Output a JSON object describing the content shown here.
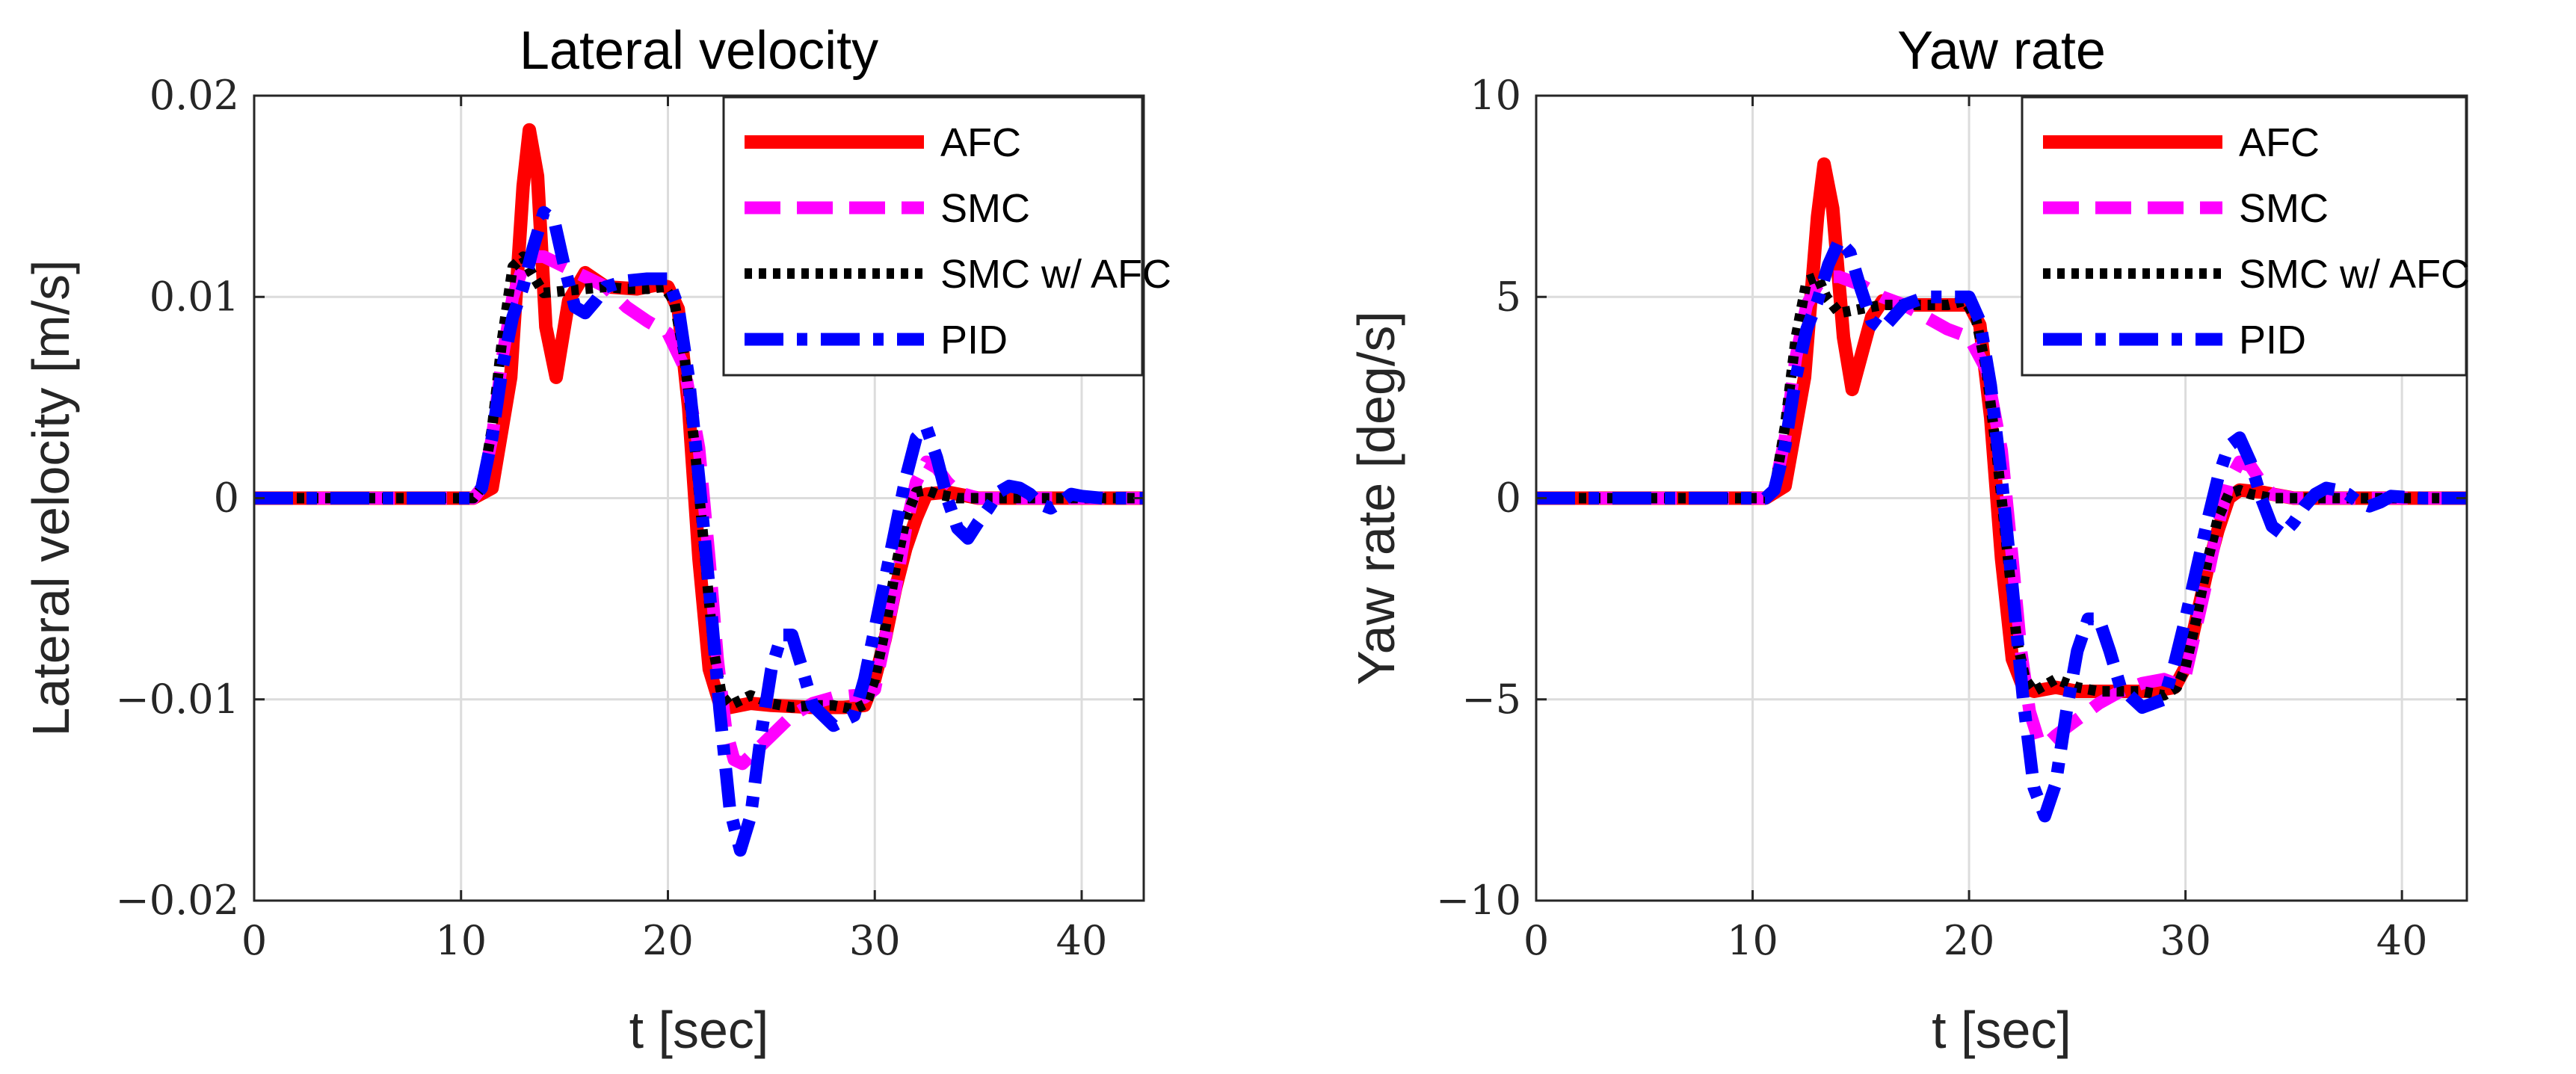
{
  "chart_data": [
    {
      "type": "line",
      "title": "Lateral velocity",
      "xlabel": "t [sec]",
      "ylabel": "Lateral velocity [m/s]",
      "xlim": [
        0,
        43
      ],
      "ylim": [
        -0.02,
        0.02
      ],
      "xticks": [
        0,
        10,
        20,
        30,
        40
      ],
      "xtick_labels": [
        "0",
        "10",
        "20",
        "30",
        "40"
      ],
      "yticks": [
        -0.02,
        -0.01,
        0,
        0.01,
        0.02
      ],
      "ytick_labels": [
        "−0.02",
        "−0.01",
        "0",
        "0.01",
        "0.02"
      ],
      "grid": true,
      "legend": "top-right",
      "series": [
        {
          "name": "AFC",
          "color": "#ff0000",
          "style": "solid",
          "x": [
            0,
            10.6,
            11.5,
            12.4,
            13.0,
            13.3,
            13.7,
            14.1,
            14.6,
            15.2,
            16.0,
            17.0,
            18.5,
            19.5,
            20.0,
            20.5,
            21.0,
            21.5,
            22.0,
            22.5,
            23.0,
            24.0,
            25.0,
            27.0,
            28.5,
            29.5,
            30.0,
            30.5,
            31.0,
            31.5,
            32.0,
            32.5,
            33.5,
            35.0,
            37.0,
            43
          ],
          "y": [
            0,
            0,
            0.0005,
            0.006,
            0.0155,
            0.0183,
            0.016,
            0.0085,
            0.006,
            0.0098,
            0.0112,
            0.0105,
            0.0104,
            0.0106,
            0.0105,
            0.0094,
            0.0045,
            -0.003,
            -0.0085,
            -0.0102,
            -0.0104,
            -0.0102,
            -0.0103,
            -0.0104,
            -0.0104,
            -0.0103,
            -0.009,
            -0.007,
            -0.0045,
            -0.0025,
            -0.001,
            0.0002,
            0.0003,
            0,
            0,
            0
          ]
        },
        {
          "name": "SMC",
          "color": "#ff00ff",
          "style": "dashed",
          "x": [
            0,
            10.6,
            11.0,
            11.5,
            12.0,
            12.5,
            13.0,
            13.5,
            14.0,
            15.0,
            16.0,
            17.0,
            18.0,
            19.0,
            20.0,
            20.8,
            21.5,
            22.0,
            22.4,
            22.8,
            23.2,
            23.6,
            24.0,
            25.0,
            26.0,
            27.0,
            28.0,
            29.0,
            29.5,
            30.0,
            30.5,
            31.0,
            31.5,
            32.0,
            32.5,
            33.0,
            33.5,
            34.0,
            35.0,
            43
          ],
          "y": [
            0,
            0,
            0.0005,
            0.003,
            0.007,
            0.01,
            0.0115,
            0.012,
            0.012,
            0.0115,
            0.011,
            0.0105,
            0.0095,
            0.0088,
            0.0082,
            0.0065,
            0.0025,
            -0.003,
            -0.008,
            -0.0115,
            -0.013,
            -0.0132,
            -0.0128,
            -0.0118,
            -0.0108,
            -0.0102,
            -0.0099,
            -0.0098,
            -0.0099,
            -0.0095,
            -0.007,
            -0.0045,
            -0.0015,
            0.0008,
            0.0018,
            0.0015,
            0.0008,
            0.0003,
            0,
            0
          ]
        },
        {
          "name": "SMC w/ AFC",
          "color": "#000000",
          "style": "dotted",
          "x": [
            0,
            10.6,
            11.0,
            11.5,
            12.0,
            12.5,
            13.0,
            13.4,
            14.0,
            15.0,
            16.0,
            17.0,
            18.0,
            19.0,
            19.8,
            20.3,
            20.8,
            21.3,
            21.8,
            22.2,
            22.6,
            23.0,
            24.0,
            25.0,
            26.0,
            27.0,
            28.0,
            29.0,
            29.6,
            30.0,
            30.5,
            31.0,
            31.5,
            32.0,
            32.5,
            33.0,
            34.0,
            43
          ],
          "y": [
            0,
            0,
            0.0005,
            0.0035,
            0.008,
            0.0115,
            0.012,
            0.0112,
            0.0102,
            0.0103,
            0.0104,
            0.0105,
            0.0104,
            0.0104,
            0.0105,
            0.0098,
            0.007,
            0.0025,
            -0.003,
            -0.0075,
            -0.0098,
            -0.0103,
            -0.0098,
            -0.0102,
            -0.0104,
            -0.0103,
            -0.0103,
            -0.0105,
            -0.0102,
            -0.009,
            -0.0065,
            -0.0035,
            -0.001,
            0.0003,
            0.0004,
            0.0002,
            0,
            0
          ]
        },
        {
          "name": "PID",
          "color": "#0000ff",
          "style": "dashdot",
          "x": [
            0,
            10.6,
            11.0,
            11.5,
            12.0,
            12.5,
            13.0,
            13.5,
            14.0,
            14.5,
            15.0,
            15.5,
            16.0,
            16.5,
            17.0,
            18.0,
            19.0,
            20.0,
            20.5,
            21.0,
            21.5,
            22.0,
            22.5,
            23.0,
            23.5,
            24.0,
            24.5,
            25.0,
            25.5,
            26.0,
            26.5,
            27.0,
            28.0,
            29.0,
            29.5,
            30.0,
            30.5,
            31.0,
            31.5,
            32.0,
            32.5,
            33.0,
            33.5,
            34.0,
            34.5,
            35.0,
            35.5,
            36.0,
            36.5,
            37.0,
            37.5,
            38.0,
            38.5,
            39.0,
            39.5,
            40.0,
            41.0,
            43
          ],
          "y": [
            0,
            0,
            0.0005,
            0.003,
            0.0065,
            0.009,
            0.0105,
            0.0125,
            0.0142,
            0.0138,
            0.0115,
            0.0095,
            0.0092,
            0.0098,
            0.0105,
            0.0108,
            0.0109,
            0.0109,
            0.0095,
            0.006,
            0.001,
            -0.0045,
            -0.0105,
            -0.0155,
            -0.0175,
            -0.0158,
            -0.0118,
            -0.0085,
            -0.0068,
            -0.0068,
            -0.0085,
            -0.0103,
            -0.0113,
            -0.0108,
            -0.009,
            -0.0065,
            -0.004,
            -0.0015,
            0.001,
            0.003,
            0.0035,
            0.002,
            0.0,
            -0.0015,
            -0.002,
            -0.0012,
            -0.0005,
            0.0003,
            0.0006,
            0.0005,
            0.0002,
            -0.0003,
            -0.0005,
            -0.0002,
            0.0002,
            0.0001,
            0,
            0
          ]
        }
      ]
    },
    {
      "type": "line",
      "title": "Yaw rate",
      "xlabel": "t [sec]",
      "ylabel": "Yaw rate [deg/s]",
      "xlim": [
        0,
        43
      ],
      "ylim": [
        -10,
        10
      ],
      "xticks": [
        0,
        10,
        20,
        30,
        40
      ],
      "xtick_labels": [
        "0",
        "10",
        "20",
        "30",
        "40"
      ],
      "yticks": [
        -10,
        -5,
        0,
        5,
        10
      ],
      "ytick_labels": [
        "−10",
        "−5",
        "0",
        "5",
        "10"
      ],
      "grid": true,
      "legend": "top-right",
      "series": [
        {
          "name": "AFC",
          "color": "#ff0000",
          "style": "solid",
          "x": [
            0,
            10.6,
            11.5,
            12.4,
            13.0,
            13.3,
            13.7,
            14.2,
            14.6,
            15.0,
            15.5,
            16.0,
            17.0,
            18.5,
            19.5,
            20.0,
            20.5,
            21.0,
            21.5,
            22.0,
            22.5,
            23.0,
            24.0,
            25.0,
            27.0,
            28.5,
            29.5,
            30.0,
            30.5,
            31.0,
            31.5,
            32.0,
            32.5,
            33.5,
            35.0,
            37.0,
            43
          ],
          "y": [
            0,
            0,
            0.3,
            3.0,
            7.0,
            8.3,
            7.2,
            4.0,
            2.7,
            3.5,
            4.5,
            4.9,
            4.8,
            4.8,
            4.8,
            4.8,
            4.3,
            2.0,
            -1.5,
            -4.0,
            -4.7,
            -4.8,
            -4.7,
            -4.8,
            -4.8,
            -4.8,
            -4.7,
            -4.2,
            -3.0,
            -1.8,
            -0.8,
            0.0,
            0.2,
            0.15,
            0,
            0,
            0
          ]
        },
        {
          "name": "SMC",
          "color": "#ff00ff",
          "style": "dashed",
          "x": [
            0,
            10.6,
            11.0,
            11.5,
            12.0,
            12.5,
            13.0,
            13.5,
            14.0,
            15.0,
            16.0,
            17.0,
            18.0,
            19.0,
            20.0,
            20.8,
            21.5,
            22.0,
            22.4,
            22.8,
            23.2,
            23.6,
            24.0,
            25.0,
            26.0,
            27.0,
            28.0,
            29.0,
            29.5,
            30.0,
            30.5,
            31.0,
            31.5,
            32.0,
            32.5,
            33.0,
            33.5,
            34.0,
            35.0,
            43
          ],
          "y": [
            0,
            0,
            0.2,
            1.5,
            3.5,
            4.8,
            5.3,
            5.5,
            5.5,
            5.3,
            5.0,
            4.8,
            4.5,
            4.2,
            4.0,
            3.2,
            1.2,
            -1.5,
            -3.8,
            -5.3,
            -6.0,
            -6.1,
            -5.9,
            -5.5,
            -5.1,
            -4.8,
            -4.6,
            -4.5,
            -4.6,
            -4.4,
            -3.2,
            -2.0,
            -0.7,
            0.4,
            0.9,
            0.8,
            0.4,
            0.1,
            0,
            0
          ]
        },
        {
          "name": "SMC w/ AFC",
          "color": "#000000",
          "style": "dotted",
          "x": [
            0,
            10.6,
            11.0,
            11.5,
            12.0,
            12.5,
            13.0,
            13.4,
            14.0,
            15.0,
            16.0,
            17.0,
            18.0,
            19.0,
            19.8,
            20.3,
            20.8,
            21.3,
            21.8,
            22.2,
            22.6,
            23.0,
            24.0,
            25.0,
            26.0,
            27.0,
            28.0,
            29.0,
            29.6,
            30.0,
            30.5,
            31.0,
            31.5,
            32.0,
            32.5,
            33.0,
            34.0,
            43
          ],
          "y": [
            0,
            0,
            0.2,
            1.8,
            4.0,
            5.4,
            5.5,
            5.0,
            4.6,
            4.7,
            4.8,
            4.8,
            4.8,
            4.8,
            4.9,
            4.5,
            3.2,
            1.0,
            -1.5,
            -3.5,
            -4.5,
            -4.8,
            -4.5,
            -4.7,
            -4.8,
            -4.8,
            -4.8,
            -4.9,
            -4.7,
            -4.2,
            -3.0,
            -1.6,
            -0.5,
            0.1,
            0.2,
            0.1,
            0,
            0
          ]
        },
        {
          "name": "PID",
          "color": "#0000ff",
          "style": "dashdot",
          "x": [
            0,
            10.6,
            11.0,
            11.5,
            12.0,
            12.5,
            13.0,
            13.5,
            14.0,
            14.5,
            15.0,
            15.5,
            16.0,
            16.5,
            17.0,
            18.0,
            19.0,
            20.0,
            20.5,
            21.0,
            21.5,
            22.0,
            22.5,
            23.0,
            23.5,
            24.0,
            24.5,
            25.0,
            25.5,
            26.0,
            26.5,
            27.0,
            28.0,
            29.0,
            29.5,
            30.0,
            30.5,
            31.0,
            31.5,
            32.0,
            32.5,
            33.0,
            33.5,
            34.0,
            34.5,
            35.0,
            35.5,
            36.0,
            36.5,
            37.0,
            37.5,
            38.0,
            38.5,
            39.0,
            39.5,
            40.0,
            41.0,
            43
          ],
          "y": [
            0,
            0,
            0.2,
            1.3,
            3.0,
            4.2,
            4.9,
            5.8,
            6.4,
            6.1,
            5.2,
            4.4,
            4.2,
            4.5,
            4.8,
            5.0,
            5.0,
            5.0,
            4.4,
            2.8,
            0.5,
            -2.2,
            -5.0,
            -7.2,
            -7.9,
            -7.1,
            -5.3,
            -3.8,
            -3.0,
            -3.0,
            -3.8,
            -4.7,
            -5.2,
            -5.0,
            -4.1,
            -3.0,
            -1.8,
            -0.6,
            0.5,
            1.3,
            1.5,
            0.9,
            0.0,
            -0.7,
            -0.9,
            -0.6,
            -0.2,
            0.1,
            0.25,
            0.2,
            0.1,
            -0.1,
            -0.2,
            -0.1,
            0.05,
            0.03,
            0,
            0
          ]
        }
      ]
    }
  ]
}
